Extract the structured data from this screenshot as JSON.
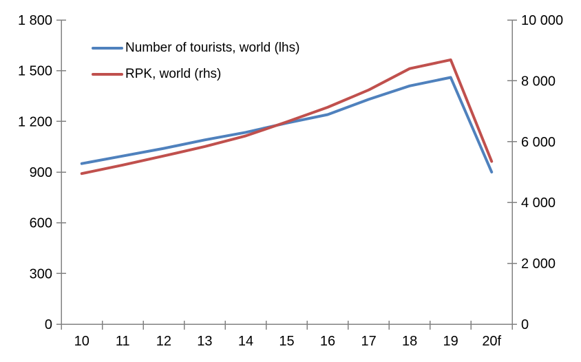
{
  "chart_data": {
    "type": "line",
    "title": "",
    "x_categories": [
      "10",
      "11",
      "12",
      "13",
      "14",
      "15",
      "16",
      "17",
      "18",
      "19",
      "20f"
    ],
    "series": [
      {
        "name": "Number of tourists, world (lhs)",
        "axis": "left",
        "color": "#4F81BD",
        "values": [
          950,
          995,
          1040,
          1090,
          1135,
          1190,
          1240,
          1330,
          1410,
          1460,
          900
        ]
      },
      {
        "name": "RPK, world (rhs)",
        "axis": "right",
        "color": "#C0504D",
        "values": [
          4950,
          5230,
          5530,
          5840,
          6190,
          6650,
          7130,
          7700,
          8400,
          8690,
          5350
        ]
      }
    ],
    "left_axis": {
      "min": 0,
      "max": 1800,
      "tick_labels": [
        "0",
        "300",
        "600",
        "900",
        "1 200",
        "1 500",
        "1 800"
      ]
    },
    "right_axis": {
      "min": 0,
      "max": 10000,
      "tick_labels": [
        "0",
        "2 000",
        "4 000",
        "6 000",
        "8 000",
        "10 000"
      ]
    },
    "grid": "off",
    "legend_position": "top-left-inside",
    "style": {
      "axis_color": "#808080",
      "label_color": "#000000",
      "line_width": 4
    }
  }
}
